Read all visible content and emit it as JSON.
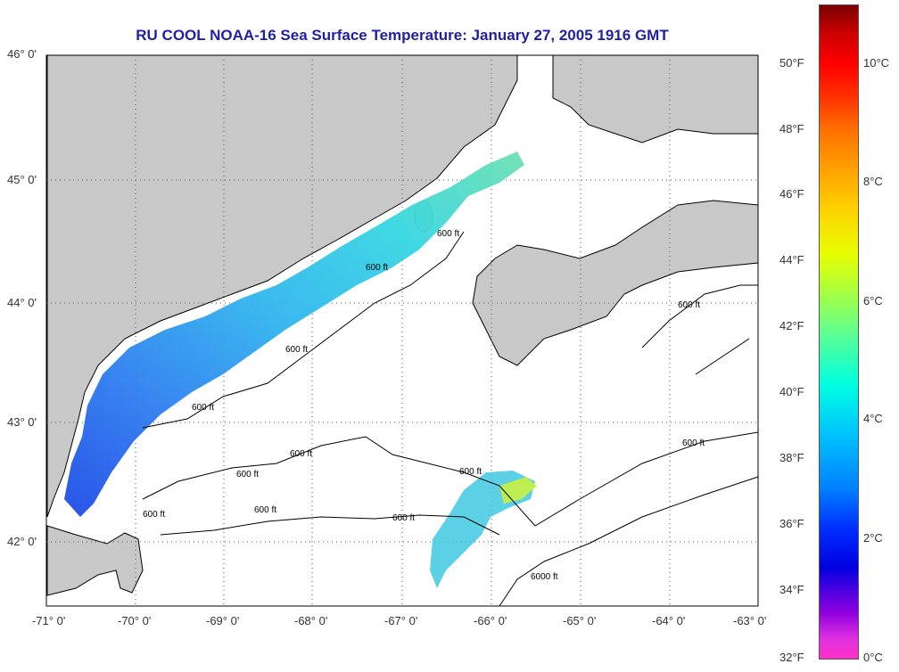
{
  "title": "RU COOL  NOAA-16  Sea Surface Temperature:  January 27, 2005 1916 GMT",
  "lat_labels": [
    "46° 0'",
    "45° 0'",
    "44° 0'",
    "43° 0'",
    "42° 0'"
  ],
  "lon_labels": [
    "-71° 0'",
    "-70° 0'",
    "-69° 0'",
    "-68° 0'",
    "-67° 0'",
    "-66° 0'",
    "-65° 0'",
    "-64° 0'",
    "-63° 0'"
  ],
  "contour_label": "600 ft",
  "deep_contour_label": "6000 ft",
  "colorbar": {
    "f_labels": [
      "50°F",
      "48°F",
      "46°F",
      "44°F",
      "42°F",
      "40°F",
      "38°F",
      "36°F",
      "34°F",
      "32°F"
    ],
    "c_labels": [
      "10°C",
      "8°C",
      "6°C",
      "4°C",
      "2°C",
      "0°C"
    ]
  },
  "colors": {
    "land": "#c8c8c8",
    "title": "#1f1fa8",
    "cold": "#1040e0",
    "mid": "#20c8e8",
    "warm": "#c8f040"
  }
}
